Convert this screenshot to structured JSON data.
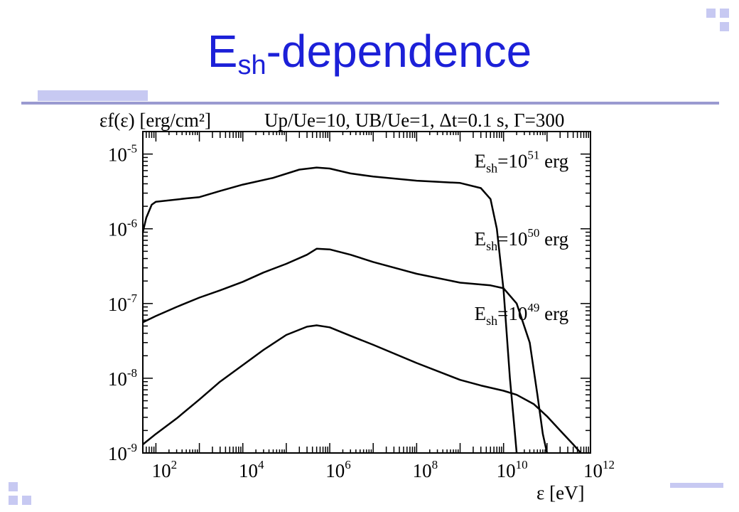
{
  "slide": {
    "title_main": "E",
    "title_sub": "sh",
    "title_rest": "-dependence",
    "title_color": "#1c20d8",
    "accent_color": "#c7c9f2",
    "rule_color": "#9a9ad0"
  },
  "chart_data": {
    "type": "line",
    "ylabel": "εf(ε) [erg/cm²]",
    "params": "Up/Ue=10, UB/Ue=1, Δt=0.1 s, Γ=300",
    "xlabel": "ε [eV]",
    "xscale": "log",
    "yscale": "log",
    "xlim": [
      50,
      1000000000000
    ],
    "ylim": [
      1e-09,
      2e-05
    ],
    "x_ticks": [
      "10^2",
      "10^4",
      "10^6",
      "10^8",
      "10^10",
      "10^12"
    ],
    "y_ticks": [
      "10^-9",
      "10^-8",
      "10^-7",
      "10^-6",
      "10^-5"
    ],
    "series": [
      {
        "name": "Esh=10^51 erg",
        "label_main": "E",
        "label_sub": "sh",
        "label_eq": "=10",
        "label_exp": "51",
        "label_unit": " erg",
        "x": [
          50,
          60,
          80,
          100,
          200,
          500,
          1000,
          3000,
          10000,
          50000,
          200000,
          500000,
          1000000,
          3000000,
          10000000,
          100000000,
          1000000000,
          3000000000,
          5000000000,
          7000000000,
          10000000000,
          14000000000,
          18000000000,
          20000000000
        ],
        "y": [
          9e-07,
          1.4e-06,
          2.1e-06,
          2.3e-06,
          2.4e-06,
          2.55e-06,
          2.65e-06,
          3.2e-06,
          3.9e-06,
          4.8e-06,
          6.2e-06,
          6.6e-06,
          6.4e-06,
          5.5e-06,
          5e-06,
          4.4e-06,
          4.1e-06,
          3.5e-06,
          2.5e-06,
          1e-06,
          1.5e-07,
          1e-08,
          2e-09,
          1e-09
        ]
      },
      {
        "name": "Esh=10^50 erg",
        "label_main": "E",
        "label_sub": "sh",
        "label_eq": "=10",
        "label_exp": "50",
        "label_unit": " erg",
        "x": [
          50,
          100,
          300,
          1000,
          3000,
          10000,
          30000,
          100000,
          300000,
          500000,
          1000000,
          3000000,
          10000000,
          100000000,
          1000000000,
          5000000000,
          10000000000,
          20000000000,
          40000000000,
          60000000000,
          80000000000,
          100000000000
        ],
        "y": [
          5.6e-08,
          6.8e-08,
          9e-08,
          1.2e-07,
          1.5e-07,
          1.95e-07,
          2.6e-07,
          3.4e-07,
          4.5e-07,
          5.4e-07,
          5.3e-07,
          4.5e-07,
          3.6e-07,
          2.5e-07,
          1.9e-07,
          1.75e-07,
          1.6e-07,
          1e-07,
          3e-08,
          6e-09,
          1.8e-09,
          1e-09
        ]
      },
      {
        "name": "Esh=10^49 erg",
        "label_main": "E",
        "label_sub": "sh",
        "label_eq": "=10",
        "label_exp": "49",
        "label_unit": " erg",
        "x": [
          50,
          100,
          300,
          1000,
          3000,
          10000,
          30000,
          100000,
          300000,
          500000,
          1000000,
          3000000,
          10000000,
          100000000,
          1000000000,
          3000000000,
          10000000000,
          20000000000,
          50000000000,
          100000000000,
          200000000000,
          400000000000,
          600000000000
        ],
        "y": [
          1.3e-09,
          1.8e-09,
          2.9e-09,
          5.2e-09,
          9e-09,
          1.5e-08,
          2.4e-08,
          3.8e-08,
          4.9e-08,
          5.1e-08,
          4.8e-08,
          3.7e-08,
          2.8e-08,
          1.6e-08,
          9.5e-09,
          8e-09,
          6.8e-09,
          6e-09,
          4.5e-09,
          3.1e-09,
          2e-09,
          1.3e-09,
          1e-09
        ]
      }
    ],
    "label_positions": [
      {
        "x": 30000000000,
        "y": 6.6e-06
      },
      {
        "x": 30000000000,
        "y": 6e-07
      },
      {
        "x": 30000000000,
        "y": 6e-08
      }
    ]
  }
}
